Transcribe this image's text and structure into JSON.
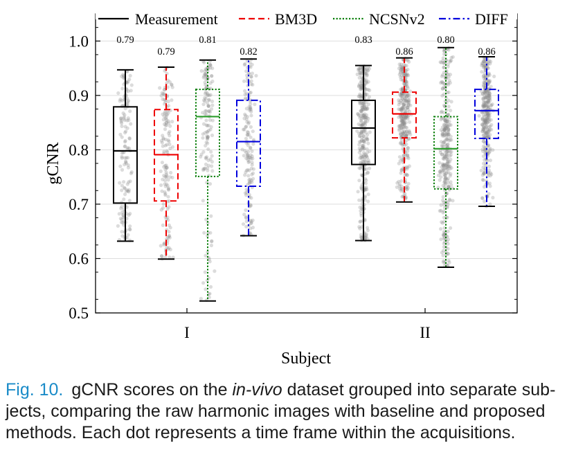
{
  "caption": {
    "label": "Fig. 10.",
    "text_before": "gCNR scores on the",
    "text_italic": "in-vivo",
    "text_after": "dataset grouped into separate sub-jects, comparing the raw harmonic images with baseline and proposed methods. Each dot represents a time frame within the acquisitions."
  },
  "chart_data": {
    "type": "box",
    "title": "",
    "xlabel": "Subject",
    "ylabel": "gCNR",
    "ylim": [
      0.5,
      1.05
    ],
    "yticks": [
      0.5,
      0.6,
      0.7,
      0.8,
      0.9,
      1.0
    ],
    "yticklabels": [
      "0.5",
      "0.6",
      "0.7",
      "0.8",
      "0.9",
      "1.0"
    ],
    "grid": true,
    "legend_position": "top",
    "categories": [
      "I",
      "II"
    ],
    "series": [
      {
        "name": "Measurement",
        "color": "#000000",
        "median_color": "#000000",
        "linestyle": "solid",
        "boxes": [
          {
            "whisker_low": 0.632,
            "q1": 0.702,
            "median": 0.798,
            "q3": 0.879,
            "whisker_high": 0.947,
            "label": "0.79"
          },
          {
            "whisker_low": 0.633,
            "q1": 0.773,
            "median": 0.84,
            "q3": 0.891,
            "whisker_high": 0.955,
            "label": "0.83"
          }
        ]
      },
      {
        "name": "BM3D",
        "color": "#ee0000",
        "median_color": "#ee0000",
        "linestyle": "dashed",
        "boxes": [
          {
            "whisker_low": 0.599,
            "q1": 0.706,
            "median": 0.791,
            "q3": 0.874,
            "whisker_high": 0.952,
            "label": "0.79"
          },
          {
            "whisker_low": 0.704,
            "q1": 0.822,
            "median": 0.866,
            "q3": 0.906,
            "whisker_high": 0.969,
            "label": "0.86"
          }
        ]
      },
      {
        "name": "NCSNv2",
        "color": "#007a00",
        "median_color": "#2a9d2a",
        "linestyle": "dotted",
        "boxes": [
          {
            "whisker_low": 0.522,
            "q1": 0.751,
            "median": 0.861,
            "q3": 0.911,
            "whisker_high": 0.965,
            "label": "0.81"
          },
          {
            "whisker_low": 0.584,
            "q1": 0.728,
            "median": 0.802,
            "q3": 0.861,
            "whisker_high": 0.988,
            "label": "0.80"
          }
        ]
      },
      {
        "name": "DIFF",
        "color": "#0000dd",
        "median_color": "#0000dd",
        "linestyle": "dashdot",
        "boxes": [
          {
            "whisker_low": 0.642,
            "q1": 0.733,
            "median": 0.815,
            "q3": 0.891,
            "whisker_high": 0.967,
            "label": "0.82"
          },
          {
            "whisker_low": 0.696,
            "q1": 0.821,
            "median": 0.872,
            "q3": 0.911,
            "whisker_high": 0.971,
            "label": "0.86"
          }
        ]
      }
    ]
  }
}
